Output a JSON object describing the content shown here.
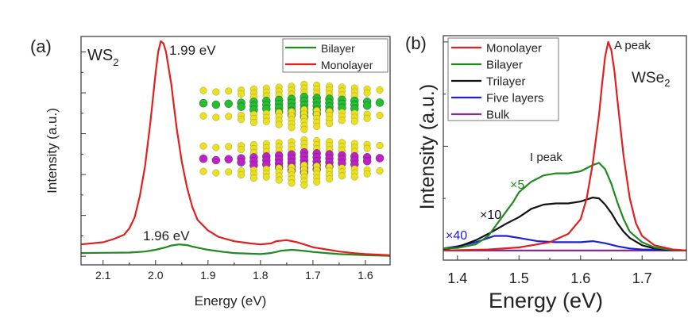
{
  "chart_data": [
    {
      "type": "line",
      "panel_label": "(a)",
      "material_label": "WS",
      "material_subscript": "2",
      "xlabel": "Energy (eV)",
      "ylabel": "Intensity (a.u.)",
      "xlim": [
        2.142,
        1.553
      ],
      "x_reversed": true,
      "ylim": [
        -0.04,
        1.022
      ],
      "xticks": [
        "2.1",
        "2.0",
        "1.9",
        "1.8",
        "1.7",
        "1.6"
      ],
      "xtick_values": [
        2.1,
        2.0,
        1.9,
        1.8,
        1.7,
        1.6
      ],
      "ytick_labels_shown": false,
      "grid": false,
      "legend_position": "top-right",
      "annotations": [
        {
          "text": "1.99 eV",
          "x": 1.99,
          "y": 1.0
        },
        {
          "text": "1.96 eV",
          "x": 1.96,
          "y": 0.055
        }
      ],
      "inset": "crystal-structure",
      "series": [
        {
          "name": "Bilayer",
          "color": "#1f8a1f",
          "x": [
            2.142,
            2.1,
            2.05,
            2.02,
            2.0,
            1.98,
            1.97,
            1.955,
            1.94,
            1.93,
            1.91,
            1.9,
            1.87,
            1.85,
            1.82,
            1.8,
            1.78,
            1.77,
            1.76,
            1.74,
            1.72,
            1.7,
            1.67,
            1.65,
            1.62,
            1.6,
            1.553
          ],
          "y": [
            0.015,
            0.016,
            0.017,
            0.022,
            0.03,
            0.042,
            0.05,
            0.055,
            0.052,
            0.045,
            0.035,
            0.03,
            0.02,
            0.015,
            0.012,
            0.01,
            0.015,
            0.02,
            0.026,
            0.03,
            0.026,
            0.02,
            0.014,
            0.01,
            0.007,
            0.005,
            0.002
          ]
        },
        {
          "name": "Monolayer",
          "color": "#e02020",
          "x": [
            2.142,
            2.1,
            2.08,
            2.06,
            2.05,
            2.04,
            2.03,
            2.02,
            2.01,
            2.0,
            1.995,
            1.99,
            1.985,
            1.98,
            1.97,
            1.96,
            1.95,
            1.94,
            1.93,
            1.92,
            1.9,
            1.88,
            1.85,
            1.82,
            1.8,
            1.78,
            1.77,
            1.75,
            1.73,
            1.71,
            1.7,
            1.67,
            1.65,
            1.62,
            1.6,
            1.553
          ],
          "y": [
            0.055,
            0.065,
            0.08,
            0.1,
            0.13,
            0.18,
            0.28,
            0.42,
            0.62,
            0.85,
            0.95,
            1.0,
            0.99,
            0.95,
            0.8,
            0.6,
            0.44,
            0.32,
            0.23,
            0.17,
            0.12,
            0.09,
            0.07,
            0.06,
            0.055,
            0.06,
            0.07,
            0.075,
            0.065,
            0.05,
            0.042,
            0.03,
            0.022,
            0.014,
            0.01,
            0.005
          ]
        }
      ]
    },
    {
      "type": "line",
      "panel_label": "(b)",
      "material_label": "WSe",
      "material_subscript": "2",
      "xlabel": "Energy (eV)",
      "ylabel": "Intensity (a.u.)",
      "xlim": [
        1.377,
        1.772
      ],
      "ylim": [
        -0.046,
        1.03
      ],
      "xticks": [
        "1.4",
        "1.5",
        "1.6",
        "1.7"
      ],
      "xtick_values": [
        1.4,
        1.5,
        1.6,
        1.7
      ],
      "ytick_labels_shown": false,
      "grid": false,
      "legend_position": "top-left",
      "annotations": [
        {
          "text": "A peak",
          "x": 1.645,
          "y": 1.0
        },
        {
          "text": "I peak",
          "x": 1.55,
          "y": 0.45
        },
        {
          "text": "×5",
          "color": "#1f8a1f"
        },
        {
          "text": "×10",
          "color": "#111111"
        },
        {
          "text": "×40",
          "color": "#2020d0"
        }
      ],
      "series": [
        {
          "name": "Monolayer",
          "color": "#e02020",
          "x": [
            1.377,
            1.45,
            1.5,
            1.55,
            1.58,
            1.6,
            1.61,
            1.62,
            1.63,
            1.635,
            1.64,
            1.645,
            1.65,
            1.655,
            1.66,
            1.67,
            1.68,
            1.69,
            1.7,
            1.72,
            1.75,
            1.772
          ],
          "y": [
            0,
            0.005,
            0.015,
            0.04,
            0.08,
            0.15,
            0.25,
            0.42,
            0.65,
            0.8,
            0.93,
            1.0,
            0.96,
            0.86,
            0.72,
            0.45,
            0.25,
            0.13,
            0.07,
            0.025,
            0.005,
            0
          ]
        },
        {
          "name": "Bilayer",
          "color": "#1f8a1f",
          "x": [
            1.377,
            1.4,
            1.43,
            1.45,
            1.47,
            1.49,
            1.5,
            1.52,
            1.54,
            1.56,
            1.58,
            1.6,
            1.62,
            1.63,
            1.64,
            1.65,
            1.66,
            1.67,
            1.68,
            1.7,
            1.72,
            1.75,
            1.772
          ],
          "y": [
            0.01,
            0.012,
            0.03,
            0.07,
            0.15,
            0.23,
            0.28,
            0.33,
            0.36,
            0.37,
            0.37,
            0.38,
            0.41,
            0.42,
            0.39,
            0.32,
            0.23,
            0.15,
            0.09,
            0.04,
            0.015,
            0.003,
            0
          ]
        },
        {
          "name": "Trilayer",
          "color": "#111111",
          "x": [
            1.377,
            1.4,
            1.43,
            1.45,
            1.48,
            1.5,
            1.52,
            1.54,
            1.56,
            1.58,
            1.6,
            1.62,
            1.63,
            1.64,
            1.65,
            1.66,
            1.67,
            1.68,
            1.7,
            1.72,
            1.75,
            1.772
          ],
          "y": [
            0.005,
            0.016,
            0.05,
            0.08,
            0.13,
            0.16,
            0.2,
            0.22,
            0.226,
            0.226,
            0.235,
            0.254,
            0.25,
            0.22,
            0.18,
            0.13,
            0.09,
            0.06,
            0.025,
            0.01,
            0.002,
            0
          ]
        },
        {
          "name": "Five layers",
          "color": "#2020d0",
          "x": [
            1.377,
            1.4,
            1.43,
            1.46,
            1.48,
            1.5,
            1.53,
            1.56,
            1.6,
            1.62,
            1.64,
            1.66,
            1.68,
            1.7,
            1.772
          ],
          "y": [
            0.01,
            0.02,
            0.04,
            0.07,
            0.07,
            0.06,
            0.045,
            0.04,
            0.04,
            0.045,
            0.035,
            0.02,
            0.01,
            0.005,
            0
          ]
        },
        {
          "name": "Bulk",
          "color": "#8a2a9a",
          "x": [
            1.377,
            1.772
          ],
          "y": [
            0,
            0
          ]
        }
      ]
    }
  ]
}
